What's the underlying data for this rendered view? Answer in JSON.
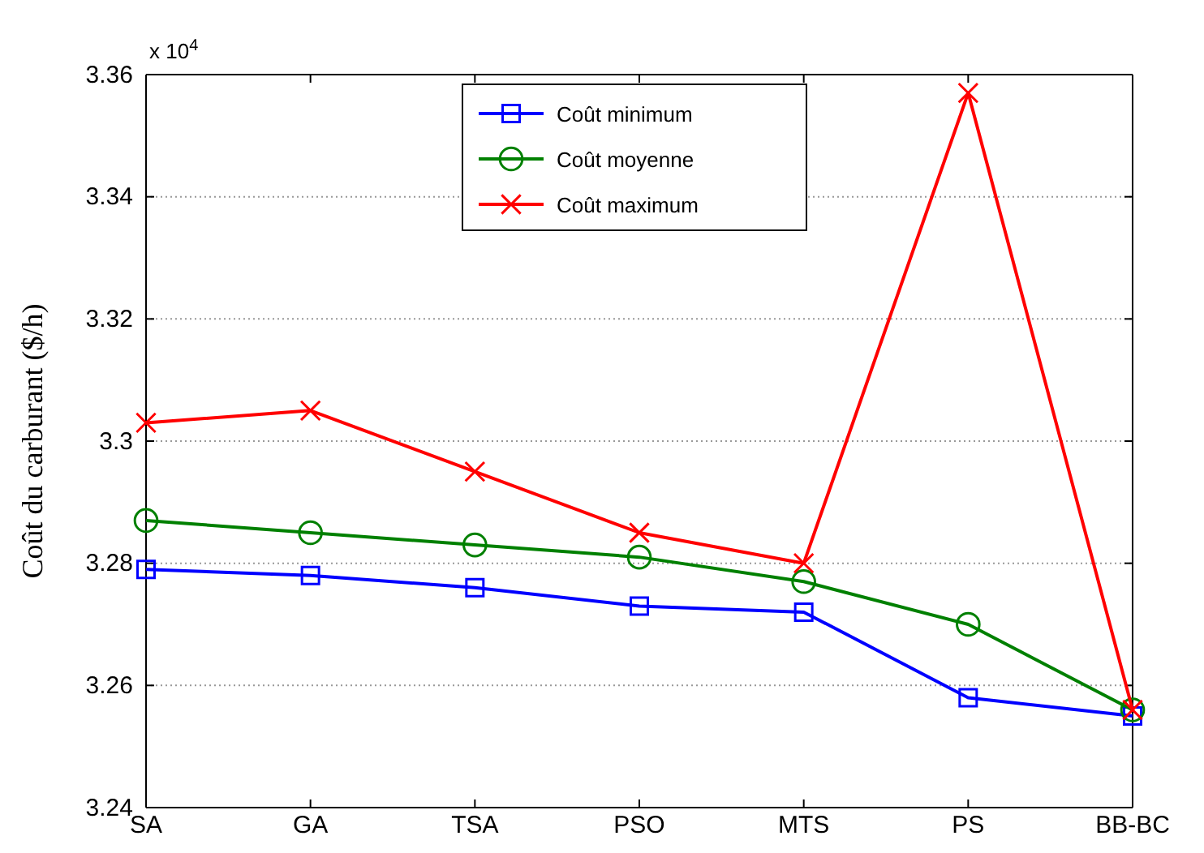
{
  "chart_data": {
    "type": "line",
    "ylabel": "Coût du carburant ($/h)",
    "categories": [
      "SA",
      "GA",
      "TSA",
      "PSO",
      "MTS",
      "PS",
      "BB-BC"
    ],
    "series": [
      {
        "name": "Coût minimum",
        "color": "#0000ff",
        "marker": "square",
        "values": [
          3.279,
          3.278,
          3.276,
          3.273,
          3.272,
          3.258,
          3.255
        ]
      },
      {
        "name": "Coût moyenne",
        "color": "#008000",
        "marker": "circle",
        "values": [
          3.287,
          3.285,
          3.283,
          3.281,
          3.277,
          3.27,
          3.256
        ]
      },
      {
        "name": "Coût maximum",
        "color": "#ff0000",
        "marker": "cross",
        "values": [
          3.303,
          3.305,
          3.295,
          3.285,
          3.28,
          3.357,
          3.256
        ]
      }
    ],
    "ylim": [
      3.24,
      3.36
    ],
    "yticks": [
      3.24,
      3.26,
      3.28,
      3.3,
      3.32,
      3.34,
      3.36
    ],
    "grid": "y",
    "legend": "top",
    "line_style": "solid",
    "annotations": [
      "x 10$^{4}$"
    ]
  }
}
